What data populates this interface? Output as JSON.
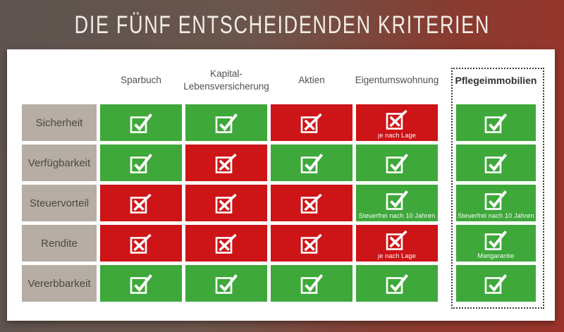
{
  "title": "DIE FÜNF ENTSCHEIDENDEN KRITERIEN",
  "chart_data": {
    "type": "table",
    "title": "DIE FÜNF ENTSCHEIDENDEN KRITERIEN",
    "columns": [
      {
        "label": "Sparbuch",
        "highlight": false
      },
      {
        "label": "Kapital-Lebensversicherung",
        "highlight": false
      },
      {
        "label": "Aktien",
        "highlight": false
      },
      {
        "label": "Eigentumswohnung",
        "highlight": false
      },
      {
        "label": "Pflegeimmobilien",
        "highlight": true
      }
    ],
    "rows": [
      {
        "criterion": "Sicherheit",
        "cells": [
          {
            "value": "positive",
            "note": ""
          },
          {
            "value": "positive",
            "note": ""
          },
          {
            "value": "negative",
            "note": ""
          },
          {
            "value": "negative",
            "note": "je nach Lage"
          },
          {
            "value": "positive",
            "note": ""
          }
        ]
      },
      {
        "criterion": "Verfügbarkeit",
        "cells": [
          {
            "value": "positive",
            "note": ""
          },
          {
            "value": "negative",
            "note": ""
          },
          {
            "value": "positive",
            "note": ""
          },
          {
            "value": "positive",
            "note": ""
          },
          {
            "value": "positive",
            "note": ""
          }
        ]
      },
      {
        "criterion": "Steuervorteil",
        "cells": [
          {
            "value": "negative",
            "note": ""
          },
          {
            "value": "negative",
            "note": ""
          },
          {
            "value": "negative",
            "note": ""
          },
          {
            "value": "positive",
            "note": "Steuerfrei nach 10 Jahren"
          },
          {
            "value": "positive",
            "note": "Steuerfrei nach 10 Jahren"
          }
        ]
      },
      {
        "criterion": "Rendite",
        "cells": [
          {
            "value": "negative",
            "note": ""
          },
          {
            "value": "negative",
            "note": ""
          },
          {
            "value": "negative",
            "note": ""
          },
          {
            "value": "negative",
            "note": "je nach Lage"
          },
          {
            "value": "positive",
            "note": "Mietgarantie"
          }
        ]
      },
      {
        "criterion": "Vererbbarkeit",
        "cells": [
          {
            "value": "positive",
            "note": ""
          },
          {
            "value": "positive",
            "note": ""
          },
          {
            "value": "positive",
            "note": ""
          },
          {
            "value": "positive",
            "note": ""
          },
          {
            "value": "positive",
            "note": ""
          }
        ]
      }
    ],
    "cell_values": {
      "positive": "checked checkbox on green",
      "negative": "crossed checkbox on red"
    }
  },
  "colors": {
    "positive": "#3ea83a",
    "negative": "#cd1417",
    "criterion_bg": "#b6ada4",
    "panel_bg": "#ffffff",
    "background_left": "#5d534f",
    "background_right": "#9c342b",
    "title_text": "#f2ede6",
    "highlight_border": "#3b3835"
  }
}
